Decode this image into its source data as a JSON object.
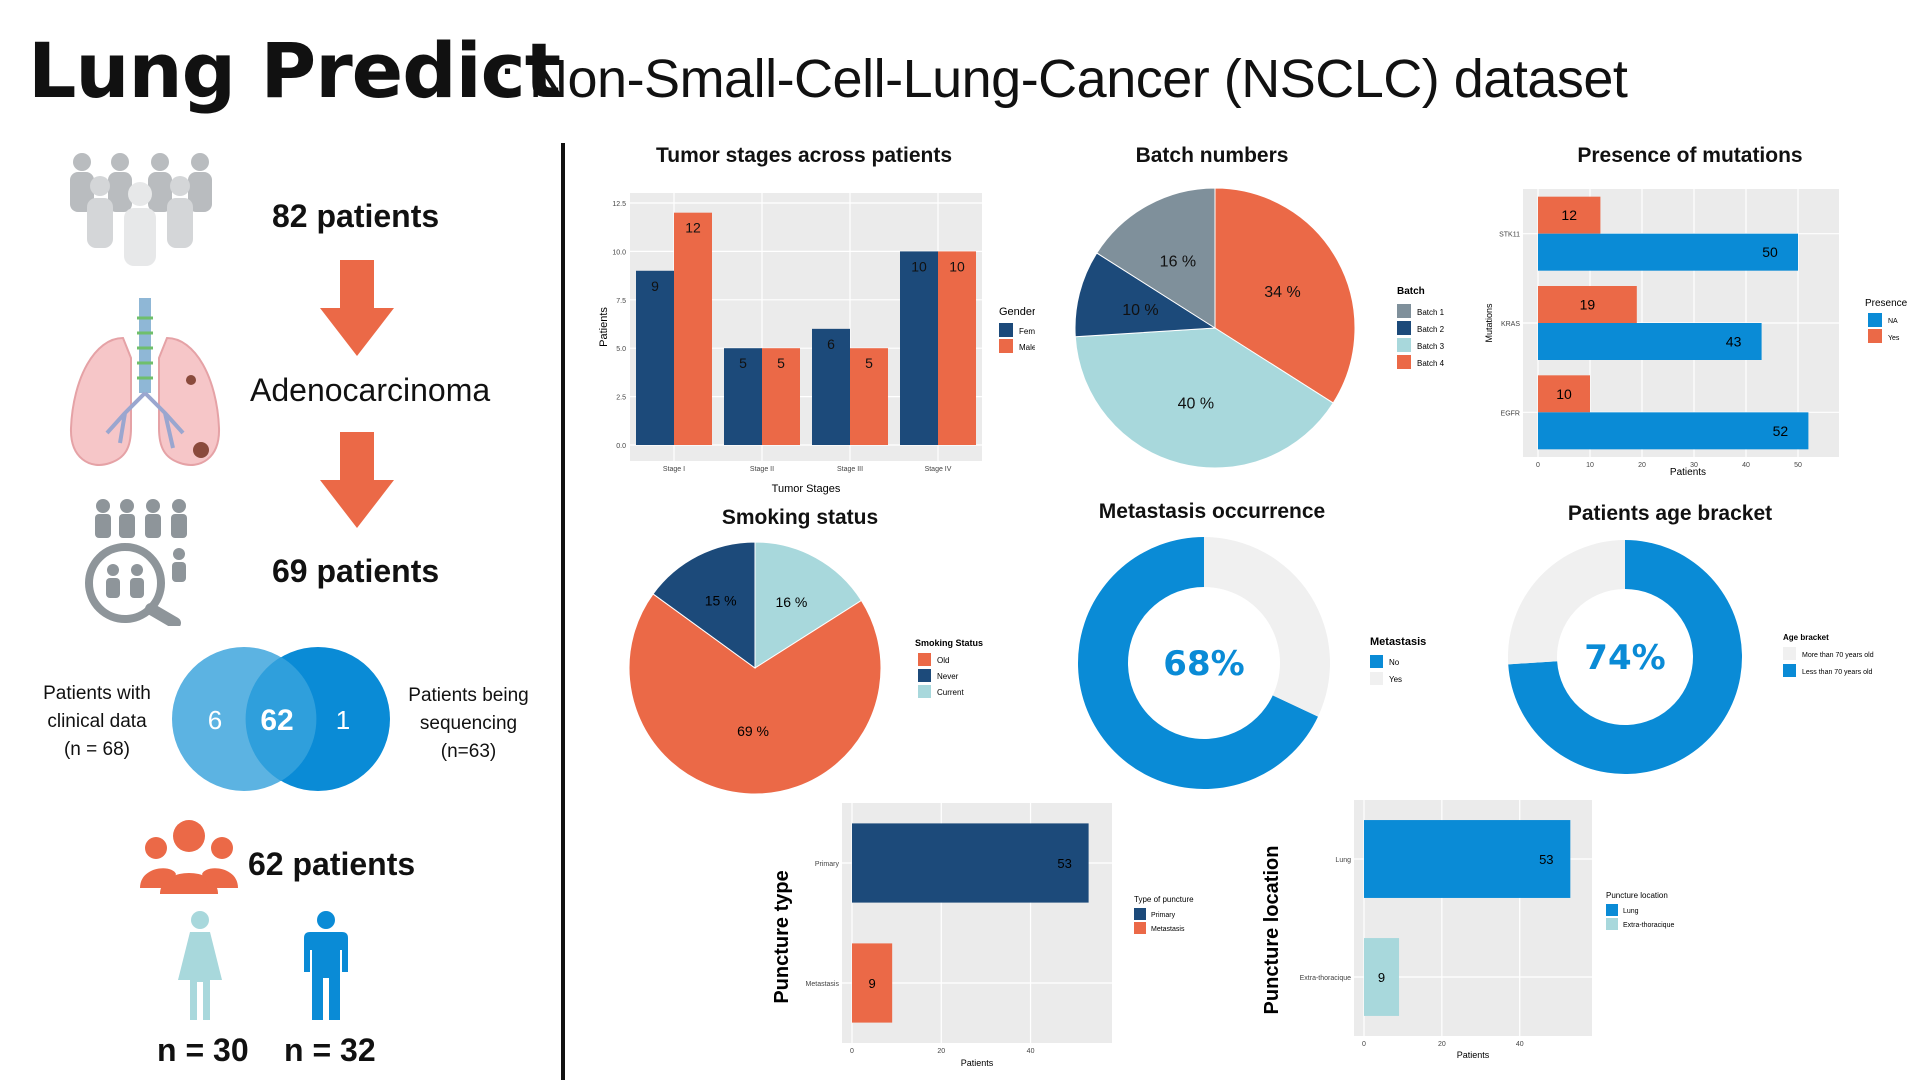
{
  "header": {
    "title": "Lung Predict",
    "subtitle": ": Non-Small-Cell-Lung-Cancer (NSCLC) dataset"
  },
  "flow": {
    "step1": "82 patients",
    "step2": "Adenocarcinoma",
    "step3": "69 patients",
    "venn": {
      "left_label": "Patients with clinical data (n = 68)",
      "left_lines": [
        "Patients with",
        "clinical data",
        "(n = 68)"
      ],
      "right_lines": [
        "Patients being",
        "sequencing",
        "(n=63)"
      ],
      "left_only": "6",
      "both": "62",
      "right_only": "1"
    },
    "step4": "62 patients",
    "female": "n = 30",
    "male": "n = 32"
  },
  "colors": {
    "navy": "#1c4a7a",
    "orange": "#eb6947",
    "blue": "#0a8bd6",
    "light_blue": "#a8d8dc",
    "gray": "#7f909b",
    "panel": "#ebebeb",
    "venn_left": "#5cb3e2",
    "venn_right": "#0a8bd6"
  },
  "chart_data": [
    {
      "id": "tumor",
      "type": "bar",
      "title": "Tumor stages across patients",
      "xlabel": "Tumor Stages",
      "ylabel": "Patients",
      "categories": [
        "Stage I",
        "Stage II",
        "Stage III",
        "Stage IV"
      ],
      "series": [
        {
          "name": "Female",
          "values": [
            9,
            5,
            6,
            10
          ]
        },
        {
          "name": "Male",
          "values": [
            12,
            5,
            5,
            10
          ]
        }
      ],
      "ylim": [
        0,
        12.5
      ],
      "yticks": [
        "0.0",
        "2.5",
        "5.0",
        "7.5",
        "10.0",
        "12.5"
      ],
      "legend_title": "Gender",
      "legend_position": "right",
      "grid": true
    },
    {
      "id": "batch",
      "type": "pie",
      "title": "Batch numbers",
      "legend_title": "Batch",
      "labels": [
        "Batch 1",
        "Batch 2",
        "Batch 3",
        "Batch 4"
      ],
      "values": [
        16,
        10,
        40,
        34
      ],
      "value_labels": [
        "16 %",
        "10 %",
        "40 %",
        "34 %"
      ]
    },
    {
      "id": "mutations",
      "type": "bar",
      "orientation": "horizontal",
      "title": "Presence of mutations",
      "xlabel": "Patients",
      "ylabel": "Mutations",
      "categories": [
        "STK11",
        "KRAS",
        "EGFR"
      ],
      "series": [
        {
          "name": "NA",
          "values": [
            50,
            43,
            52
          ]
        },
        {
          "name": "Yes",
          "values": [
            12,
            19,
            10
          ]
        }
      ],
      "xlim": [
        0,
        55
      ],
      "xticks": [
        "0",
        "10",
        "20",
        "30",
        "40",
        "50"
      ],
      "legend_title": "Presence",
      "legend_position": "right"
    },
    {
      "id": "smoking",
      "type": "pie",
      "title": "Smoking status",
      "legend_title": "Smoking Status",
      "labels": [
        "Old",
        "Never",
        "Current"
      ],
      "values": [
        69,
        15,
        16
      ],
      "value_labels": [
        "69 %",
        "15 %",
        "16 %"
      ]
    },
    {
      "id": "metastasis",
      "type": "pie",
      "title": "Metastasis occurrence",
      "legend_title": "Metastasis",
      "labels": [
        "No",
        "Yes"
      ],
      "values": [
        68,
        32
      ],
      "center_label": "68%"
    },
    {
      "id": "age",
      "type": "pie",
      "title": "Patients age bracket",
      "legend_title": "Age bracket",
      "labels": [
        "More than 70 years old",
        "Less than 70 years old"
      ],
      "values": [
        26,
        74
      ],
      "center_label": "74%"
    },
    {
      "id": "puncture_type",
      "type": "bar",
      "orientation": "horizontal",
      "xlabel": "Patients",
      "ylabel": "Puncture type",
      "categories": [
        "Primary",
        "Metastasis"
      ],
      "values": [
        53,
        9
      ],
      "xticks": [
        "0",
        "20",
        "40"
      ],
      "xlim": [
        0,
        56
      ],
      "legend_title": "Type of puncture",
      "legend_labels": [
        "Primary",
        "Metastasis"
      ]
    },
    {
      "id": "puncture_location",
      "type": "bar",
      "orientation": "horizontal",
      "xlabel": "Patients",
      "ylabel": "Puncture location",
      "categories": [
        "Lung",
        "Extra-thoracique"
      ],
      "values": [
        53,
        9
      ],
      "xticks": [
        "0",
        "20",
        "40"
      ],
      "xlim": [
        0,
        56
      ],
      "legend_title": "Puncture location",
      "legend_labels": [
        "Lung",
        "Extra-thoracique"
      ]
    }
  ]
}
